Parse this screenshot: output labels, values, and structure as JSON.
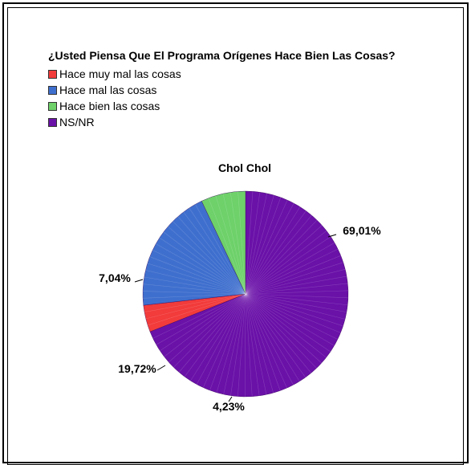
{
  "chart_data": {
    "type": "pie",
    "title": "¿Usted Piensa Que El Programa Orígenes Hace Bien Las Cosas?",
    "subtitle": "Chol Chol",
    "legend_position": "top-left",
    "categories": [
      "Hace muy mal las cosas",
      "Hace mal las cosas",
      "Hace bien las cosas",
      "NS/NR"
    ],
    "values": [
      4.23,
      19.72,
      7.04,
      69.01
    ],
    "value_labels": [
      "4,23%",
      "19,72%",
      "7,04%",
      "69,01%"
    ],
    "colors": [
      "#f23b3b",
      "#3f6fce",
      "#6ed16a",
      "#6a11a8"
    ]
  }
}
